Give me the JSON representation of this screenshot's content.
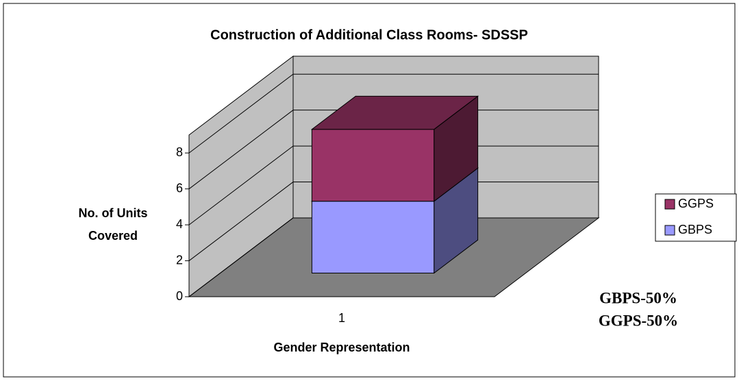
{
  "chart_data": {
    "type": "bar",
    "stacked": true,
    "title": "Construction of Additional Class Rooms- SDSSP",
    "x_label": "Gender Representation",
    "y_label": "No. of Units Covered",
    "categories": [
      "1"
    ],
    "series": [
      {
        "name": "GBPS",
        "color": "#9999ff",
        "values": [
          4
        ]
      },
      {
        "name": "GGPS",
        "color": "#993366",
        "values": [
          4
        ]
      }
    ],
    "ylim": [
      0,
      9
    ],
    "yticks": [
      0,
      2,
      4,
      6,
      8
    ],
    "grid": true,
    "legend": "right",
    "annotations": [
      "GBPS-50%",
      "GGPS-50%"
    ]
  }
}
